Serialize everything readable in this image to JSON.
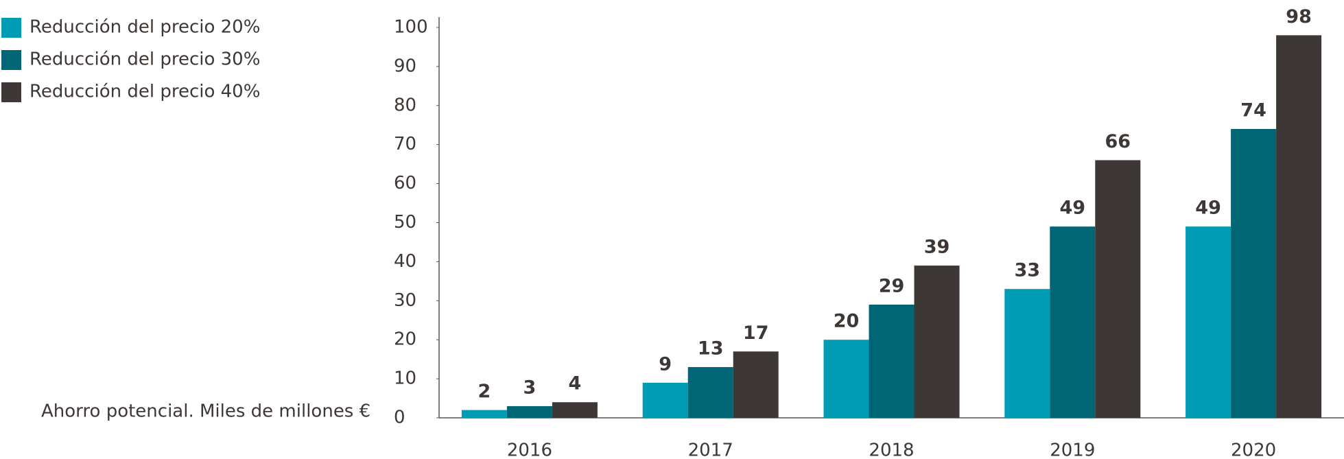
{
  "chart_data": {
    "type": "bar",
    "ylabel": "Ahorro potencial. Miles de millones €",
    "categories": [
      "2016",
      "2017",
      "2018",
      "2019",
      "2020"
    ],
    "series": [
      {
        "name": "Reducción del precio 20%",
        "color": "#009bb5",
        "values": [
          2,
          9,
          20,
          33,
          49
        ]
      },
      {
        "name": "Reducción del precio 30%",
        "color": "#006675",
        "values": [
          3,
          13,
          29,
          49,
          74
        ]
      },
      {
        "name": "Reducción del precio 40%",
        "color": "#3d3835",
        "values": [
          4,
          17,
          39,
          66,
          98
        ]
      }
    ],
    "ylim": [
      0,
      100
    ],
    "yticks": [
      0,
      10,
      20,
      30,
      40,
      50,
      60,
      70,
      80,
      90,
      100
    ],
    "legend": "top-left"
  }
}
